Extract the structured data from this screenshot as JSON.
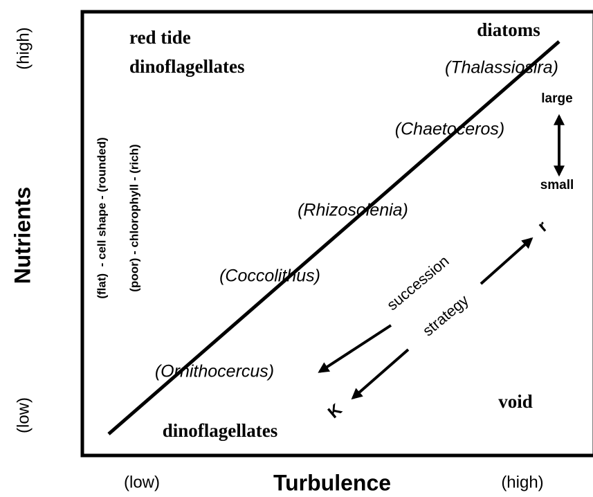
{
  "axes": {
    "y_label": "Nutrients",
    "y_high": "(high)",
    "y_low": "(low)",
    "x_label": "Turbulence",
    "x_low": "(low)",
    "x_high": "(high)"
  },
  "regions": {
    "top_left": [
      "red tide",
      "dinoflagellates"
    ],
    "top_right": "diatoms",
    "bottom_left": "dinoflagellates",
    "bottom_right": "void"
  },
  "genera": [
    "(Thalassiosira)",
    "(Chaetoceros)",
    "(Rhizosolenia)",
    "(Coccolithus)",
    "(Ornithocercus)"
  ],
  "size": {
    "top": "large",
    "bottom": "small"
  },
  "gradients": [
    "(flat)  - cell shape - (rounded)",
    "(poor) - chlorophyll - (rich)"
  ],
  "arrows": {
    "succession": "succession",
    "strategy": "strategy",
    "r": "r",
    "K": "K"
  }
}
